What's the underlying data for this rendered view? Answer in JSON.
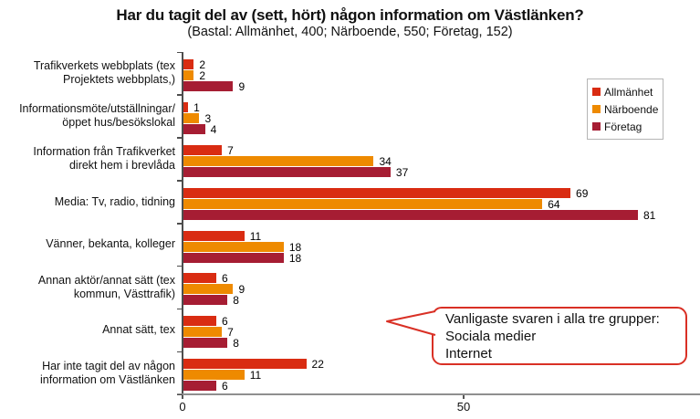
{
  "title": "Har du tagit del av (sett, hört) någon information om Västlänken?",
  "subtitle": "(Bastal: Allmänhet, 400; Närboende, 550; Företag, 152)",
  "legend": {
    "items": [
      {
        "label": "Allmänhet",
        "color": "#d92c12"
      },
      {
        "label": "Närboende",
        "color": "#ee8a00"
      },
      {
        "label": "Företag",
        "color": "#a61d33"
      }
    ]
  },
  "callout": {
    "lines": [
      "Vanligaste svaren i alla tre grupper:",
      "Sociala medier",
      "Internet"
    ],
    "border_color": "#d93025"
  },
  "chart_data": {
    "type": "bar",
    "orientation": "horizontal",
    "title": "Har du tagit del av (sett, hört) någon information om Västlänken?",
    "subtitle": "(Bastal: Allmänhet, 400; Närboende, 550; Företag, 152)",
    "categories": [
      "Trafikverkets webbplats (tex\nProjektets webbplats,)",
      "Informationsmöte/utställningar/\növppet hus/besökslokal",
      "Information från Trafikverket\ndirekt hem i brevlåda",
      "Media: Tv, radio, tidning",
      "Vänner, bekanta, kolleger",
      "Annan aktör/annat sätt (tex\nkommun, Västtrafik)",
      "Annat sätt, tex",
      "Har inte tagit del av någon\ninformation om Västlänken"
    ],
    "series": [
      {
        "name": "Allmänhet",
        "color": "#d92c12",
        "values": [
          2,
          1,
          7,
          69,
          11,
          6,
          6,
          22
        ]
      },
      {
        "name": "Närboende",
        "color": "#ee8a00",
        "values": [
          2,
          3,
          34,
          64,
          18,
          9,
          7,
          11
        ]
      },
      {
        "name": "Företag",
        "color": "#a61d33",
        "values": [
          9,
          4,
          37,
          81,
          18,
          8,
          8,
          6
        ]
      }
    ],
    "xlim": [
      0,
      92
    ],
    "x_ticks": [
      0,
      50
    ],
    "grid": false,
    "value_labels": true,
    "legend_position": "upper-right"
  }
}
